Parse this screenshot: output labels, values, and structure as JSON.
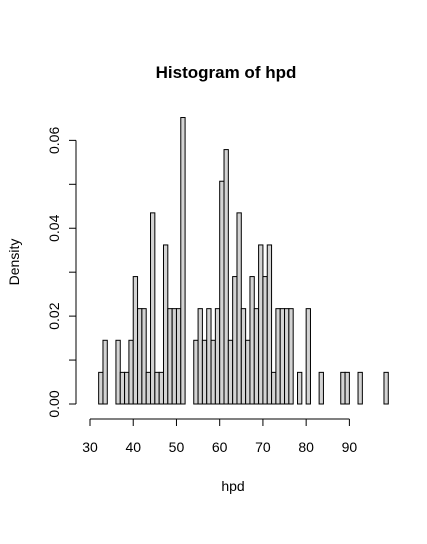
{
  "chart_data": {
    "type": "bar",
    "title": "Histogram of hpd",
    "xlabel": "hpd",
    "ylabel": "Density",
    "x_ticks": [
      "30",
      "40",
      "50",
      "60",
      "70",
      "80",
      "90"
    ],
    "y_ticks": [
      "0.00",
      "0.02",
      "0.04",
      "0.06"
    ],
    "xlim": [
      30,
      95
    ],
    "ylim": [
      0,
      0.066
    ],
    "bin_width": 1,
    "bin_start": 32,
    "values": [
      0.0072,
      0.0145,
      0,
      0,
      0.0145,
      0.0072,
      0.0072,
      0.0145,
      0.029,
      0.0217,
      0.0217,
      0.0072,
      0.0435,
      0.0072,
      0.0072,
      0.0362,
      0.0217,
      0.0217,
      0.0217,
      0.0652,
      0,
      0,
      0.0145,
      0.0217,
      0.0145,
      0.0217,
      0.0145,
      0.0217,
      0.0507,
      0.0579,
      0.0145,
      0.029,
      0.0435,
      0.0217,
      0.0145,
      0.029,
      0.0217,
      0.0362,
      0.029,
      0.0362,
      0.0072,
      0.0217,
      0.0217,
      0.0217,
      0.0217,
      0,
      0.0072,
      0,
      0.0217,
      0,
      0,
      0.0072,
      0,
      0,
      0,
      0,
      0.0072,
      0.0072,
      0,
      0,
      0.0072,
      0,
      0,
      0,
      0,
      0,
      0.0072
    ],
    "grid": false,
    "legend": "none"
  }
}
